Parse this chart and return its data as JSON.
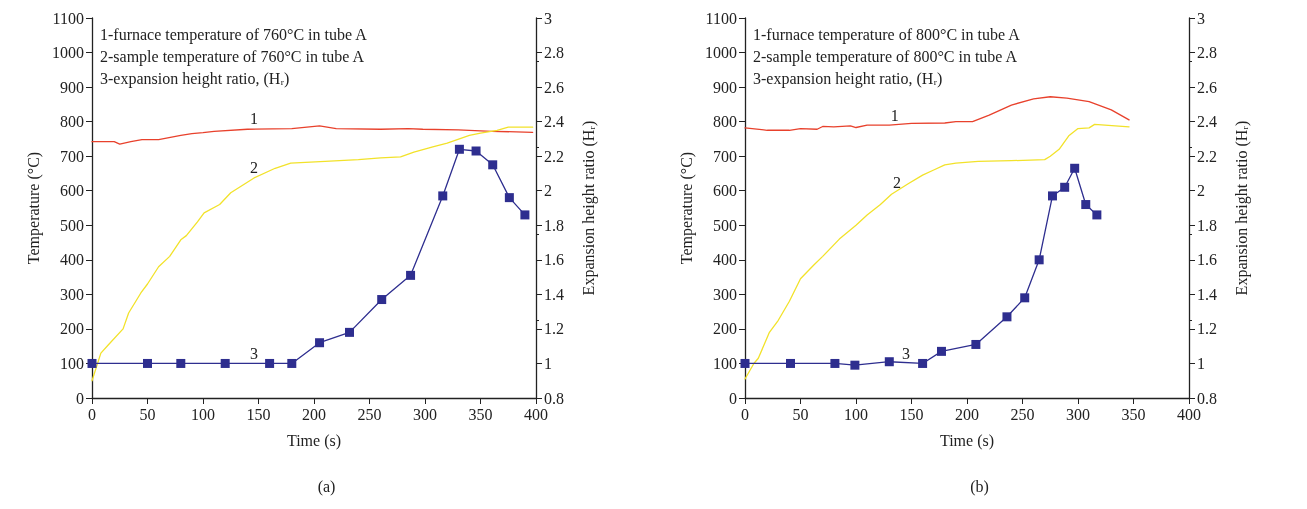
{
  "chart_data": [
    {
      "type": "line",
      "title": "(a)",
      "xlabel": "Time (s)",
      "ylabel": "Temperature (°C)",
      "y2label": "Expansion height ratio (Hᵣ)",
      "xlim": [
        0,
        400
      ],
      "xticks": [
        0,
        50,
        100,
        150,
        200,
        250,
        300,
        350,
        400
      ],
      "ylim": [
        0,
        1100
      ],
      "yticks": [
        0,
        100,
        200,
        300,
        400,
        500,
        600,
        700,
        800,
        900,
        1000,
        1100
      ],
      "y2lim": [
        0.8,
        3.0
      ],
      "y2ticks": [
        0.8,
        1.0,
        1.2,
        1.4,
        1.6,
        1.8,
        2.0,
        2.2,
        2.4,
        2.6,
        2.8,
        3.0
      ],
      "grid": false,
      "series": [
        {
          "color": "#e8412c",
          "marker": "none",
          "x": [
            0,
            20,
            25,
            35,
            45,
            60,
            80,
            90,
            100,
            110,
            140,
            180,
            205,
            220,
            260,
            285,
            298,
            330,
            360,
            397
          ],
          "values": [
            742,
            742,
            735,
            742,
            748,
            748,
            760,
            765,
            768,
            772,
            778,
            780,
            788,
            780,
            778,
            780,
            778,
            776,
            772,
            769
          ]
        },
        {
          "color": "#f2e22a",
          "marker": "none",
          "x": [
            0,
            8,
            15,
            28,
            33,
            44,
            50,
            60,
            70,
            80,
            85,
            95,
            101,
            115,
            125,
            146,
            165,
            179,
            210,
            240,
            260,
            278,
            290,
            307,
            320,
            340,
            350,
            365,
            375,
            397
          ],
          "values": [
            50,
            130,
            155,
            200,
            246,
            304,
            330,
            380,
            410,
            458,
            470,
            510,
            536,
            560,
            594,
            637,
            665,
            680,
            685,
            690,
            695,
            698,
            712,
            727,
            738,
            760,
            767,
            775,
            784,
            784
          ]
        },
        {
          "color": "#2e2e8f",
          "marker": "square",
          "axis": "y2",
          "x": [
            0,
            50,
            80,
            120,
            160,
            180,
            205,
            232,
            261,
            287,
            316,
            331,
            346,
            361,
            376,
            390
          ],
          "values": [
            1.0,
            1.0,
            1.0,
            1.0,
            1.0,
            1.0,
            1.12,
            1.18,
            1.37,
            1.51,
            1.97,
            2.24,
            2.23,
            2.15,
            1.96,
            1.86
          ]
        }
      ],
      "annotations": [
        "1-furnace temperature of 760°C in tube A",
        "2-sample temperature of 760°C in tube A",
        "3-expansion height ratio, (Hᵣ)",
        {
          "text": "1",
          "x": 146,
          "y": 779
        },
        {
          "text": "2",
          "x": 146,
          "y": 637
        },
        {
          "text": "3",
          "x": 146,
          "y": 100
        }
      ]
    },
    {
      "type": "line",
      "title": "(b)",
      "xlabel": "Time (s)",
      "ylabel": "Temperature (°C)",
      "y2label": "Expansion height ratio (Hᵣ)",
      "xlim": [
        0,
        400
      ],
      "xticks": [
        0,
        50,
        100,
        150,
        200,
        250,
        300,
        350,
        400
      ],
      "ylim": [
        0,
        1100
      ],
      "yticks": [
        0,
        100,
        200,
        300,
        400,
        500,
        600,
        700,
        800,
        900,
        1000,
        1100
      ],
      "y2lim": [
        0.8,
        3.0
      ],
      "y2ticks": [
        0.8,
        1.0,
        1.2,
        1.4,
        1.6,
        1.8,
        2.0,
        2.2,
        2.4,
        2.6,
        2.8,
        3.0
      ],
      "grid": false,
      "series": [
        {
          "color": "#e8412c",
          "marker": "none",
          "x": [
            0,
            20,
            40,
            50,
            65,
            70,
            80,
            95,
            100,
            110,
            130,
            150,
            180,
            190,
            205,
            220,
            240,
            260,
            275,
            290,
            310,
            330,
            346
          ],
          "values": [
            782,
            775,
            775,
            780,
            778,
            786,
            785,
            788,
            783,
            790,
            790,
            795,
            796,
            800,
            800,
            819,
            848,
            866,
            872,
            868,
            858,
            834,
            805
          ]
        },
        {
          "color": "#f2e22a",
          "marker": "none",
          "x": [
            0,
            8,
            12,
            22,
            30,
            40,
            50,
            62,
            70,
            85,
            100,
            110,
            122,
            132,
            147,
            160,
            170,
            180,
            190,
            210,
            240,
            270,
            275,
            283,
            292,
            300,
            310,
            315,
            346
          ],
          "values": [
            55,
            100,
            115,
            190,
            225,
            280,
            345,
            385,
            410,
            460,
            500,
            530,
            560,
            590,
            620,
            645,
            660,
            675,
            680,
            685,
            687,
            690,
            700,
            720,
            760,
            780,
            782,
            792,
            785
          ]
        },
        {
          "color": "#2e2e8f",
          "marker": "square",
          "axis": "y2",
          "x": [
            0,
            41,
            81,
            99,
            130,
            160,
            177,
            208,
            236,
            252,
            265,
            277,
            288,
            297,
            307,
            317
          ],
          "values": [
            1.0,
            1.0,
            1.0,
            0.99,
            1.01,
            1.0,
            1.07,
            1.11,
            1.27,
            1.38,
            1.6,
            1.97,
            2.02,
            2.13,
            1.92,
            1.86
          ]
        }
      ],
      "annotations": [
        "1-furnace temperature of 800°C in tube A",
        "2-sample temperature of 800°C in tube A",
        "3-expansion height ratio, (Hᵣ)",
        {
          "text": "1",
          "x": 135,
          "y": 790
        },
        {
          "text": "2",
          "x": 137,
          "y": 595
        },
        {
          "text": "3",
          "x": 145,
          "y": 100
        }
      ]
    }
  ]
}
